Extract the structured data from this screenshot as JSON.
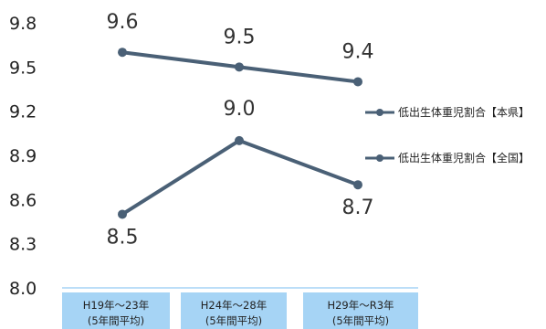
{
  "chart_data": {
    "type": "line",
    "categories": [
      [
        "H19年～23年",
        "(5年間平均)"
      ],
      [
        "H24年～28年",
        "(5年間平均)"
      ],
      [
        "H29年～R3年",
        "(5年間平均)"
      ]
    ],
    "series": [
      {
        "name": "低出生体重児割合【全国】",
        "values": [
          9.6,
          9.5,
          9.4
        ],
        "color": "#4a6076"
      },
      {
        "name": "低出生体重児割合【本県】",
        "values": [
          8.5,
          9.0,
          8.7
        ],
        "color": "#4a6076"
      }
    ],
    "data_labels": [
      [
        "9.6",
        "9.5",
        "9.4"
      ],
      [
        "8.5",
        "9.0",
        "8.7"
      ]
    ],
    "yticks": [
      "8.0",
      "8.3",
      "8.6",
      "8.9",
      "9.2",
      "9.5",
      "9.8"
    ],
    "ylim": [
      8.0,
      9.8
    ],
    "legend": {
      "position": "right",
      "entries": [
        "低出生体重児割合【本県】",
        "低出生体重児割合【全国】"
      ]
    },
    "grid": false,
    "colors": {
      "line": "#4a6076",
      "category_box": "#a6d4f5",
      "axis": "#a6d4f5"
    }
  }
}
